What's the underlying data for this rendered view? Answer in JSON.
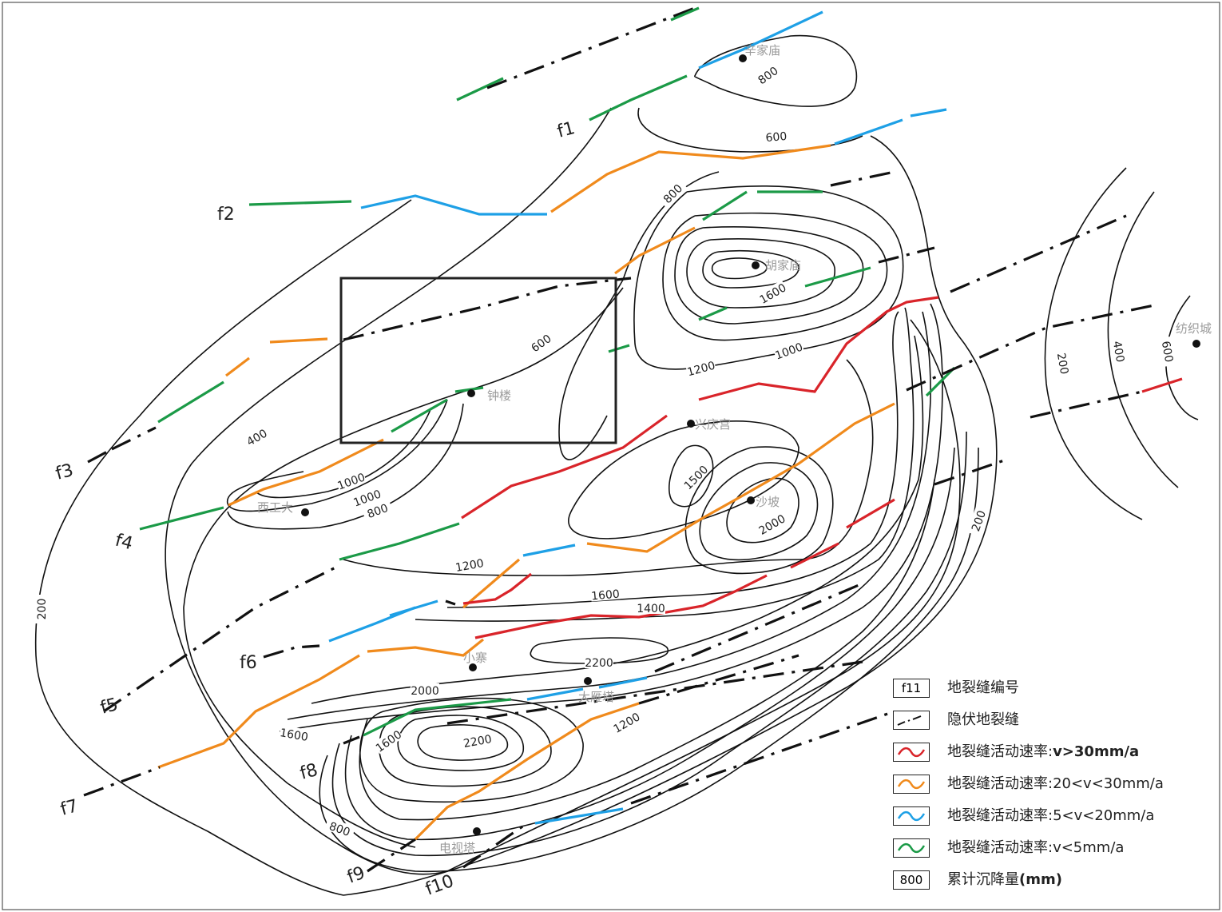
{
  "colors": {
    "red": "#d9242a",
    "orange": "#f08a1c",
    "blue": "#1ea0e6",
    "green": "#1b9a47",
    "black": "#111111"
  },
  "places": {
    "xinjiamiao": "辛家庙",
    "hujiamiao": "胡家庙",
    "zhonglou": "钟楼",
    "xingqinggong": "兴庆宫",
    "xigongda": "西工大",
    "shapo": "沙坡",
    "xiaozhai": "小寨",
    "dayanta": "大雁塔",
    "dianshita": "电视塔",
    "fangzhicheng": "纺织城"
  },
  "faults": {
    "f1": "f1",
    "f2": "f2",
    "f3": "f3",
    "f4": "f4",
    "f5": "f5",
    "f6": "f6",
    "f7": "f7",
    "f8": "f8",
    "f9": "f9",
    "f10": "f10"
  },
  "contour_labels": [
    "800",
    "600",
    "800",
    "1600",
    "1000",
    "1200",
    "600",
    "400",
    "1000",
    "1000",
    "800",
    "1500",
    "2000",
    "1200",
    "1600",
    "1400",
    "2200",
    "2000",
    "1600",
    "1600",
    "2200",
    "1200",
    "800",
    "200",
    "200",
    "200",
    "400",
    "600"
  ],
  "legend": {
    "items": [
      {
        "symbol_text": "f11",
        "label": "地裂缝编号",
        "bold_suffix": ""
      },
      {
        "symbol_text": "",
        "label": "隐伏地裂缝",
        "bold_suffix": ""
      },
      {
        "symbol_text": "",
        "label": "地裂缝活动速率:",
        "bold_suffix": "v>30mm/a",
        "color": "red"
      },
      {
        "symbol_text": "",
        "label": "地裂缝活动速率:20<v<30mm/a",
        "bold_suffix": "",
        "color": "orange"
      },
      {
        "symbol_text": "",
        "label": "地裂缝活动速率:5<v<20mm/a",
        "bold_suffix": "",
        "color": "blue"
      },
      {
        "symbol_text": "",
        "label": "地裂缝活动速率:v<5mm/a",
        "bold_suffix": "",
        "color": "green"
      },
      {
        "symbol_text": "800",
        "label": "累计沉降量",
        "bold_suffix": "(mm)"
      }
    ]
  }
}
